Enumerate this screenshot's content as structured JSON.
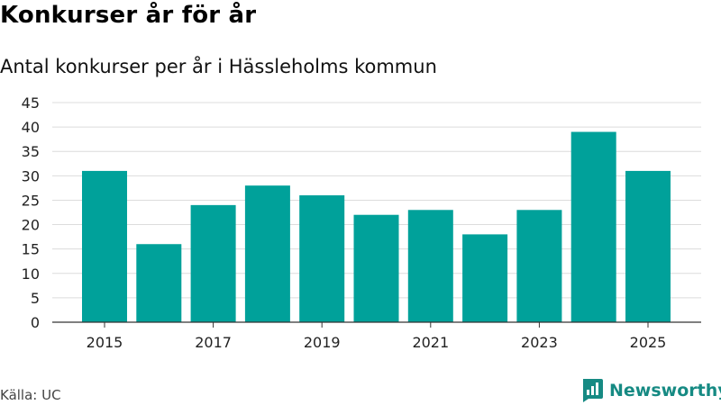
{
  "chart_data": {
    "type": "bar",
    "title": "Konkurser år för år",
    "subtitle": "Antal konkurser per år i Hässleholms kommun",
    "xlabel": "",
    "ylabel": "",
    "categories": [
      "2015",
      "2016",
      "2017",
      "2018",
      "2019",
      "2020",
      "2021",
      "2022",
      "2023",
      "2024",
      "2025"
    ],
    "values": [
      31,
      16,
      24,
      28,
      26,
      22,
      23,
      18,
      23,
      39,
      31
    ],
    "x_tick_labels": [
      "2015",
      "2017",
      "2019",
      "2021",
      "2023",
      "2025"
    ],
    "y_ticks": [
      0,
      5,
      10,
      15,
      20,
      25,
      30,
      35,
      40,
      45
    ],
    "ylim": [
      0,
      45
    ],
    "grid": true,
    "bar_color": "#00a19a"
  },
  "source": "Källa: UC",
  "brand": {
    "name": "Newsworthy",
    "icon": "newsworthy-logo-icon",
    "color": "#168a83"
  }
}
